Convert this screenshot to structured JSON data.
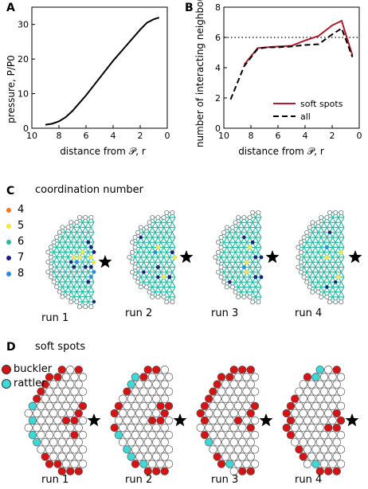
{
  "panels": {
    "a_letter": "A",
    "b_letter": "B",
    "c_letter": "C",
    "d_letter": "D",
    "c_title": "coordination number",
    "d_title": "soft spots"
  },
  "chart_data": [
    {
      "type": "line",
      "panel": "A",
      "xlabel": "distance from 𝒫, r",
      "ylabel": "pressure, P/P0",
      "xlim": [
        10,
        0
      ],
      "ylim": [
        0,
        35
      ],
      "xticks": [
        "10",
        "8",
        "6",
        "4",
        "2",
        "0"
      ],
      "yticks": [
        "0",
        "10",
        "20",
        "30"
      ],
      "series": [
        {
          "x": [
            9.0,
            8.5,
            8.0,
            7.5,
            7.0,
            6.0,
            5.0,
            4.0,
            3.0,
            2.0,
            1.5,
            1.0,
            0.6
          ],
          "y": [
            1.0,
            1.3,
            2.0,
            3.2,
            5.0,
            9.5,
            14.5,
            19.5,
            24.0,
            28.5,
            30.5,
            31.5,
            32.0
          ]
        }
      ]
    },
    {
      "type": "line",
      "panel": "B",
      "xlabel": "distance from 𝒫, r",
      "ylabel": "number of interacting neighbours",
      "xlim": [
        10,
        0
      ],
      "ylim": [
        0,
        8
      ],
      "xticks": [
        "10",
        "8",
        "6",
        "4",
        "2",
        "0"
      ],
      "yticks": [
        "0",
        "2",
        "4",
        "6",
        "8"
      ],
      "reference_line": 6,
      "series": [
        {
          "name": "soft spots",
          "color": "#b01b2e",
          "style": "solid",
          "x": [
            8.5,
            7.5,
            6.8,
            6.0,
            5.0,
            4.0,
            3.0,
            2.0,
            1.3,
            0.5
          ],
          "y": [
            4.2,
            5.3,
            5.35,
            5.4,
            5.45,
            5.8,
            6.1,
            6.8,
            7.1,
            4.8
          ]
        },
        {
          "name": "all",
          "color": "#000000",
          "style": "dashed",
          "x": [
            9.5,
            8.5,
            7.5,
            6.8,
            6.0,
            5.0,
            4.0,
            3.0,
            2.0,
            1.3,
            0.5
          ],
          "y": [
            1.9,
            4.1,
            5.25,
            5.35,
            5.35,
            5.4,
            5.5,
            5.55,
            6.2,
            6.6,
            4.7
          ]
        }
      ]
    }
  ],
  "legend_c": {
    "items": [
      {
        "label": "4",
        "color": "#f07820"
      },
      {
        "label": "5",
        "color": "#f6e53a"
      },
      {
        "label": "6",
        "color": "#26b8a0"
      },
      {
        "label": "7",
        "color": "#1a1f7a"
      },
      {
        "label": "8",
        "color": "#2a8cdc"
      }
    ]
  },
  "legend_d": {
    "items": [
      {
        "label": "buckler",
        "color": "#d41414"
      },
      {
        "label": "rattler",
        "color": "#3fd8d8"
      }
    ]
  },
  "runs": [
    "run 1",
    "run 2",
    "run 3",
    "run 4"
  ],
  "colors": {
    "network": "#26b8a0",
    "buckler": "#d41414",
    "rattler": "#3fd8d8",
    "deg5": "#f6e53a",
    "deg7": "#1a1f7a",
    "deg8": "#2a8cdc",
    "deg4": "#f07820"
  }
}
